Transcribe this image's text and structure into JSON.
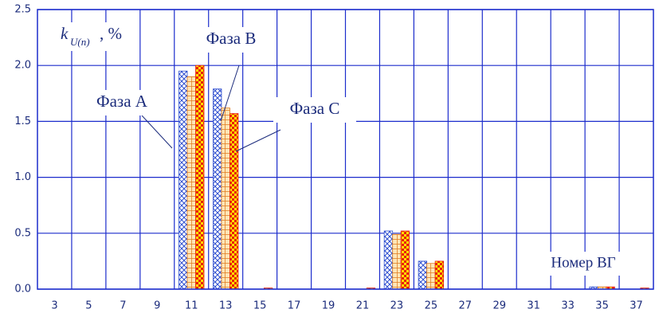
{
  "chart_data": {
    "type": "bar",
    "y_label": {
      "symbol": "k",
      "subscript": "U(n)",
      "suffix": ", %"
    },
    "x_label": "Номер ВГ",
    "categories": [
      "3",
      "5",
      "7",
      "9",
      "11",
      "13",
      "15",
      "17",
      "19",
      "21",
      "23",
      "25",
      "27",
      "29",
      "31",
      "33",
      "35",
      "37"
    ],
    "series": [
      {
        "name": "Фаза А",
        "color": "#2f4fd0",
        "values": [
          0,
          0,
          0,
          0,
          1.95,
          1.79,
          0,
          0,
          0,
          0,
          0.52,
          0.25,
          0,
          0,
          0,
          0,
          0.02,
          0
        ]
      },
      {
        "name": "Фаза В",
        "color": "#e07a1c",
        "values": [
          0,
          0,
          0,
          0,
          1.9,
          1.62,
          0,
          0,
          0,
          0,
          0.49,
          0.23,
          0,
          0,
          0,
          0,
          0.02,
          0
        ]
      },
      {
        "name": "Фаза С",
        "color": "#e8200c",
        "values": [
          0,
          0,
          0,
          0,
          2.0,
          1.57,
          0.01,
          0,
          0,
          0.01,
          0.52,
          0.25,
          0,
          0,
          0,
          0,
          0.02,
          0.01
        ]
      }
    ],
    "ylim": [
      0,
      2.5
    ],
    "yticks": [
      {
        "value": 0,
        "label": "0.0"
      },
      {
        "value": 0.5,
        "label": "0.5"
      },
      {
        "value": 1,
        "label": "1.0"
      },
      {
        "value": 1.5,
        "label": "1.5"
      },
      {
        "value": 2,
        "label": "2.0"
      },
      {
        "value": 2.5,
        "label": "2.5"
      }
    ],
    "grid": true,
    "grid_color": "#1c2ccc"
  }
}
